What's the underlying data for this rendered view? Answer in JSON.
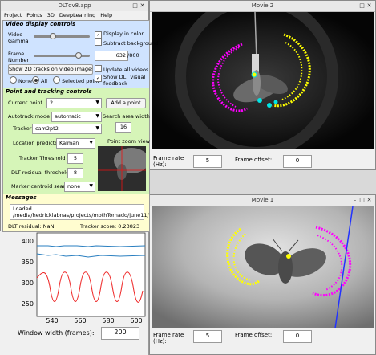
{
  "dltdv": {
    "title": "DLTdv8.app",
    "menu": [
      "Project",
      "Points",
      "3D",
      "DeepLearning",
      "Help"
    ],
    "video_display": {
      "heading": "Video display controls",
      "gamma_label": "Video Gamma",
      "frame_label": "Frame Number",
      "frame_value": "632",
      "frame_total": "/800",
      "display_color": "Display in color",
      "subtract_bg": "Subtract background",
      "show2d_button": "Show 2D tracks on video images",
      "radio_none": "None",
      "radio_all": "All",
      "radio_selected": "Selected point",
      "update_all": "Update all videos",
      "show_dlt": "Show DLT visual feedback"
    },
    "tracking": {
      "heading": "Point and tracking controls",
      "current_point_label": "Current point",
      "current_point_value": "2",
      "add_point": "Add a point",
      "autotrack_label": "Autotrack mode",
      "autotrack_value": "automatic",
      "search_area_label": "Search area width",
      "search_area_value": "16",
      "tracker_label": "Tracker",
      "tracker_value": "cam2pt2",
      "location_label": "Location predictor",
      "location_value": "Kalman",
      "zoom_label": "Point zoom view",
      "threshold_label": "Tracker Threshold",
      "threshold_value": "5",
      "dlt_residual_label": "DLT residual threshold",
      "dlt_residual_value": "8",
      "marker_label": "Marker centroid search",
      "marker_value": "none"
    },
    "messages": {
      "heading": "Messages",
      "text_line1": "Loaded",
      "text_line2": "/media/hedricklabnas/projects/mothTornado/june11/",
      "dlt_residual": "DLT residual: NaN",
      "tracker_score": "Tracker score: 0.23823"
    }
  },
  "plot": {
    "ticks_y": [
      "400",
      "350",
      "300",
      "250"
    ],
    "ticks_x": [
      "540",
      "560",
      "580",
      "600"
    ],
    "window_label": "Window width (frames):",
    "window_value": "200"
  },
  "movie2": {
    "title": "Movie 2",
    "frame_rate_label": "Frame rate (Hz):",
    "frame_rate_value": "5",
    "frame_offset_label": "Frame offset:",
    "frame_offset_value": "0"
  },
  "movie1": {
    "title": "Movie 1",
    "frame_rate_label": "Frame rate (Hz):",
    "frame_rate_value": "5",
    "frame_offset_label": "Frame offset:",
    "frame_offset_value": "0"
  },
  "colors": {
    "blue_panel": "#cfe3ff",
    "green_panel": "#d6f5b8",
    "yellow_panel": "#fffdd0",
    "track_magenta": "#ff00ff",
    "track_yellow": "#ffff00",
    "track_cyan": "#00e5e5",
    "epipolar_line": "#2233ff",
    "plot_blue": "#2a7fc0",
    "plot_red": "#ee2222"
  },
  "icons": [
    "minimize-icon",
    "maximize-icon",
    "close-icon",
    "chevron-down-icon",
    "checkbox-checked-icon"
  ]
}
